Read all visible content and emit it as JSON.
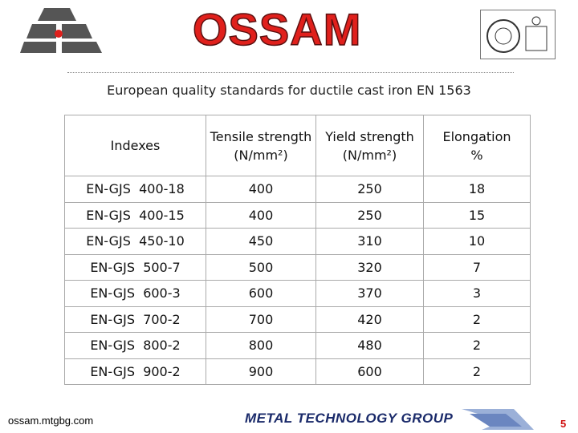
{
  "header": {
    "logo_text": "OSSAM",
    "title": "European quality standards for ductile cast iron EN 1563"
  },
  "table": {
    "columns": [
      {
        "name": "Indexes",
        "unit": null
      },
      {
        "name": "Tensile strength",
        "unit": "(N/mm²)"
      },
      {
        "name": "Yield strength",
        "unit": "(N/mm²)"
      },
      {
        "name": "Elongation",
        "unit": "%"
      }
    ],
    "rows": [
      [
        "EN-GJS  400-18",
        400,
        250,
        18
      ],
      [
        "EN-GJS  400-15",
        400,
        250,
        15
      ],
      [
        "EN-GJS  450-10",
        450,
        310,
        10
      ],
      [
        "EN-GJS  500-7",
        500,
        320,
        7
      ],
      [
        "EN-GJS  600-3",
        600,
        370,
        3
      ],
      [
        "EN-GJS  700-2",
        700,
        420,
        2
      ],
      [
        "EN-GJS  800-2",
        800,
        480,
        2
      ],
      [
        "EN-GJS  900-2",
        900,
        600,
        2
      ]
    ]
  },
  "footer": {
    "website": "ossam.mtgbg.com",
    "group": "METAL TECHNOLOGY GROUP",
    "page": "5"
  }
}
